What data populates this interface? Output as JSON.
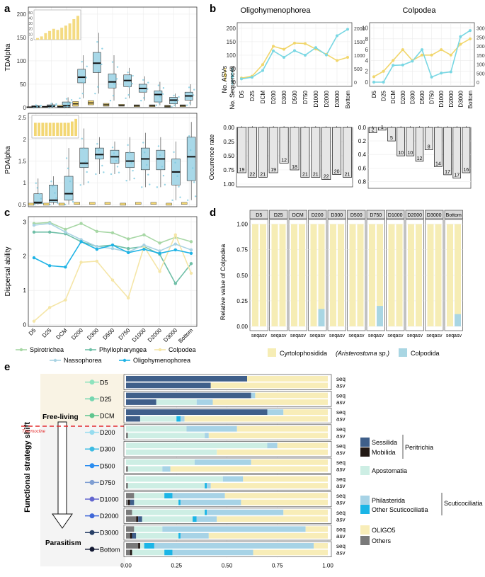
{
  "panel_letters": [
    "a",
    "b",
    "c",
    "d",
    "e"
  ],
  "colors": {
    "spirotrichea": "#a7d7a5",
    "phyllopharyngea": "#6fbfa7",
    "colpodea": "#f5e6a8",
    "nassophorea": "#a9d3e3",
    "oligohymenophorea": "#1fb3e5",
    "box_blue": "#a8d8e8",
    "box_yellow": "#f3d774",
    "asv_line": "#f1d66b",
    "seq_line": "#79d7e3",
    "occ_bar": "#e6e6e6",
    "sessilida": "#3f5f8a",
    "mobilida": "#221814",
    "apostomatia": "#cdeee4",
    "philasterida": "#a7d3e6",
    "other_scutico": "#1bb5e6",
    "oligo5": "#f8edb8",
    "others": "#7a7a7a",
    "colpodida": "#a9d6e3",
    "cyrtolophosidida": "#f6edb5",
    "facet_strip": "#d9d9d9",
    "free_living_bg": "#f9f3e4",
    "thermocline": "#e32b2b"
  },
  "chart_data": [
    {
      "id": "a_top",
      "type": "box",
      "ylabel": "TDAlpha",
      "yticks": [
        0,
        50,
        100,
        150,
        200
      ],
      "ylim": [
        0,
        215
      ],
      "categories": [
        "D5",
        "D25",
        "DCM",
        "D200",
        "D300",
        "D500",
        "D750",
        "D1000",
        "D2000",
        "D3000",
        "Bottom"
      ],
      "boxes": [
        {
          "cat": "D5",
          "q1": 1,
          "med": 2,
          "q3": 4,
          "lo": 0,
          "hi": 6,
          "color": "blue"
        },
        {
          "cat": "D25",
          "q1": 2,
          "med": 3,
          "q3": 6,
          "lo": 0,
          "hi": 10,
          "color": "blue"
        },
        {
          "cat": "DCM",
          "q1": 1,
          "med": 4,
          "q3": 12,
          "lo": 0,
          "hi": 22,
          "color": "blue"
        },
        {
          "cat": "D200",
          "q1": 53,
          "med": 65,
          "q3": 82,
          "lo": 20,
          "hi": 112,
          "color": "blue"
        },
        {
          "cat": "D300",
          "q1": 75,
          "med": 95,
          "q3": 118,
          "lo": 30,
          "hi": 160,
          "color": "blue"
        },
        {
          "cat": "D500",
          "q1": 42,
          "med": 55,
          "q3": 72,
          "lo": 15,
          "hi": 112,
          "color": "blue"
        },
        {
          "cat": "D750",
          "q1": 45,
          "med": 58,
          "q3": 70,
          "lo": 20,
          "hi": 85,
          "color": "blue"
        },
        {
          "cat": "D1000",
          "q1": 33,
          "med": 41,
          "q3": 50,
          "lo": 15,
          "hi": 67,
          "color": "blue"
        },
        {
          "cat": "D2000",
          "q1": 12,
          "med": 28,
          "q3": 36,
          "lo": 5,
          "hi": 55,
          "color": "blue"
        },
        {
          "cat": "D3000",
          "q1": 8,
          "med": 16,
          "q3": 22,
          "lo": 2,
          "hi": 30,
          "color": "blue"
        },
        {
          "cat": "Bottom",
          "q1": 16,
          "med": 25,
          "q3": 33,
          "lo": 5,
          "hi": 50,
          "color": "blue"
        }
      ],
      "yellow_boxes": [
        {
          "q1": 0,
          "med": 1,
          "q3": 2
        },
        {
          "q1": 1,
          "med": 2,
          "q3": 3
        },
        {
          "q1": 1,
          "med": 2,
          "q3": 5
        },
        {
          "q1": 3,
          "med": 8,
          "q3": 13
        },
        {
          "q1": 6,
          "med": 10,
          "q3": 15
        },
        {
          "q1": 3,
          "med": 6,
          "q3": 9
        },
        {
          "q1": 3,
          "med": 5,
          "q3": 7
        },
        {
          "q1": 2,
          "med": 4,
          "q3": 6
        },
        {
          "q1": 2,
          "med": 4,
          "q3": 6
        },
        {
          "q1": 1,
          "med": 3,
          "q3": 5
        },
        {
          "q1": 2,
          "med": 4,
          "q3": 6
        }
      ],
      "inset": {
        "yticks": [
          0,
          10,
          20,
          30,
          40,
          50
        ],
        "ylim": [
          0,
          55
        ],
        "medians": [
          3,
          6,
          12,
          16,
          20,
          18,
          22,
          26,
          30,
          38,
          44
        ]
      }
    },
    {
      "id": "a_bottom",
      "type": "box",
      "ylabel": "PDAlpha",
      "yticks": [
        0.5,
        1.0,
        1.5,
        2.0,
        2.5
      ],
      "ylim": [
        0.45,
        2.6
      ],
      "categories": [
        "D5",
        "D25",
        "DCM",
        "D200",
        "D300",
        "D500",
        "D750",
        "D1000",
        "D2000",
        "D3000",
        "Bottom"
      ],
      "boxes": [
        {
          "cat": "D5",
          "q1": 0.52,
          "med": 0.55,
          "q3": 0.75,
          "lo": 0.5,
          "hi": 1.1
        },
        {
          "cat": "D25",
          "q1": 0.55,
          "med": 0.6,
          "q3": 0.95,
          "lo": 0.5,
          "hi": 1.15
        },
        {
          "cat": "DCM",
          "q1": 0.6,
          "med": 0.75,
          "q3": 1.15,
          "lo": 0.5,
          "hi": 1.8
        },
        {
          "cat": "D200",
          "q1": 1.35,
          "med": 1.45,
          "q3": 1.8,
          "lo": 0.95,
          "hi": 2.25
        },
        {
          "cat": "D300",
          "q1": 1.55,
          "med": 1.65,
          "q3": 1.8,
          "lo": 1.2,
          "hi": 2.05
        },
        {
          "cat": "D500",
          "q1": 1.45,
          "med": 1.6,
          "q3": 1.75,
          "lo": 1.2,
          "hi": 1.95
        },
        {
          "cat": "D750",
          "q1": 1.35,
          "med": 1.5,
          "q3": 1.7,
          "lo": 1.05,
          "hi": 2.05
        },
        {
          "cat": "D1000",
          "q1": 1.3,
          "med": 1.55,
          "q3": 1.8,
          "lo": 0.9,
          "hi": 2.15
        },
        {
          "cat": "D2000",
          "q1": 1.3,
          "med": 1.55,
          "q3": 1.75,
          "lo": 0.9,
          "hi": 2.05
        },
        {
          "cat": "D3000",
          "q1": 0.95,
          "med": 1.25,
          "q3": 1.55,
          "lo": 0.6,
          "hi": 1.95
        },
        {
          "cat": "Bottom",
          "q1": 1.05,
          "med": 1.6,
          "q3": 2.05,
          "lo": 0.6,
          "hi": 2.4
        }
      ],
      "yellow_med": [
        0.5,
        0.5,
        0.5,
        0.52,
        0.52,
        0.52,
        0.5,
        0.52,
        0.52,
        0.5,
        0.52
      ],
      "inset": {
        "values": [
          1,
          1,
          1,
          1,
          1,
          1,
          1,
          1,
          1,
          1,
          1.1,
          1.3
        ]
      }
    },
    {
      "id": "b_oligo_line",
      "type": "line",
      "title": "Oligohymenophorea",
      "legend": [
        "No. ASVs",
        "No. Sequences"
      ],
      "yticks_left": [
        0,
        50,
        100,
        150,
        200
      ],
      "ylim_left": [
        0,
        205
      ],
      "yticks_right": [
        0,
        500,
        1000,
        1500,
        2000
      ],
      "ylim_right": [
        0,
        2050
      ],
      "categories": [
        "D5",
        "D25",
        "DCM",
        "D200",
        "D300",
        "D500",
        "D750",
        "D1000",
        "D2000",
        "D3000",
        "Bottom"
      ],
      "asv": [
        15,
        22,
        65,
        133,
        122,
        145,
        143,
        123,
        103,
        80,
        92
      ],
      "seq": [
        120,
        180,
        430,
        1160,
        920,
        1170,
        1000,
        1280,
        1010,
        1720,
        1960
      ]
    },
    {
      "id": "b_colp_line",
      "type": "line",
      "title": "Colpodea",
      "yticks_left": [
        0,
        2,
        4,
        6,
        8,
        10
      ],
      "ylim_left": [
        0,
        10.2
      ],
      "yticks_right": [
        0,
        500,
        1000,
        1500,
        2000,
        2500,
        3000
      ],
      "ylim_right": [
        0,
        3060
      ],
      "categories": [
        "D5",
        "D25",
        "DCM",
        "D200",
        "D300",
        "D500",
        "D750",
        "D1000",
        "D2000",
        "D3000",
        "Bottom"
      ],
      "asv": [
        1,
        2,
        4,
        6,
        4,
        5,
        5,
        6,
        5,
        7,
        8
      ],
      "seq": [
        0,
        0,
        930,
        950,
        1160,
        1800,
        280,
        500,
        570,
        2520,
        2860
      ]
    },
    {
      "id": "b_oligo_occ",
      "type": "bar",
      "ylabel": "Occurrence rate",
      "yticks": [
        "0.00",
        "0.25",
        "0.50",
        "0.75",
        "1.00"
      ],
      "ylim": [
        0,
        1.05
      ],
      "values": [
        0.8,
        0.88,
        0.88,
        0.8,
        0.63,
        0.75,
        0.88,
        0.88,
        0.92,
        0.83,
        0.88
      ],
      "labels": [
        "19",
        "22",
        "21",
        "19",
        "12",
        "18",
        "21",
        "21",
        "22",
        "20",
        "21"
      ]
    },
    {
      "id": "b_colp_occ",
      "type": "bar",
      "yticks": [
        "0.0",
        "0.2",
        "0.4",
        "0.6",
        "0.8"
      ],
      "ylim": [
        0,
        0.9
      ],
      "values": [
        0.08,
        0.04,
        0.2,
        0.42,
        0.42,
        0.5,
        0.33,
        0.58,
        0.7,
        0.75,
        0.67
      ],
      "labels": [
        "2",
        "1",
        "5",
        "10",
        "10",
        "12",
        "8",
        "14",
        "17",
        "17",
        "16"
      ]
    },
    {
      "id": "c",
      "type": "line",
      "ylabel": "Dispersal ability",
      "yticks": [
        0,
        1,
        2,
        3
      ],
      "ylim": [
        -0.05,
        3.15
      ],
      "categories": [
        "D5",
        "D25",
        "DCM",
        "D200",
        "D300",
        "D500",
        "D750",
        "D1000",
        "D2000",
        "D3000",
        "Bottom"
      ],
      "series": [
        {
          "name": "Spirotrichea",
          "key": "spirotrichea",
          "values": [
            2.95,
            2.98,
            2.78,
            2.95,
            2.72,
            2.68,
            2.5,
            2.62,
            2.38,
            2.55,
            2.42
          ]
        },
        {
          "name": "Phyllopharyngea",
          "key": "phyllopharyngea",
          "values": [
            2.7,
            2.7,
            2.65,
            2.42,
            2.28,
            2.32,
            2.22,
            2.28,
            2.05,
            1.2,
            1.78
          ]
        },
        {
          "name": "Colpodea",
          "key": "colpodea",
          "values": [
            0.1,
            0.5,
            0.72,
            1.82,
            1.85,
            1.3,
            0.78,
            2.28,
            1.55,
            2.62,
            1.5
          ]
        },
        {
          "name": "Nassophorea",
          "key": "nassophorea",
          "values": [
            2.9,
            2.95,
            2.7,
            2.48,
            2.28,
            2.22,
            2.12,
            2.32,
            2.15,
            2.35,
            2.18
          ]
        },
        {
          "name": "Oligohymenophorea",
          "key": "oligohymenophorea",
          "values": [
            1.95,
            1.72,
            1.68,
            2.42,
            2.2,
            2.32,
            2.1,
            2.2,
            2.08,
            2.18,
            2.08
          ]
        }
      ]
    },
    {
      "id": "d",
      "type": "bar",
      "ylabel": "Relative value of Colpodea",
      "yticks": [
        "0.00",
        "0.25",
        "0.50",
        "0.75",
        "1.00"
      ],
      "facets": [
        "D5",
        "D25",
        "DCM",
        "D200",
        "D300",
        "D500",
        "D750",
        "D1000",
        "D2000",
        "D3000",
        "Bottom"
      ],
      "xtick_labels": [
        "seq",
        "asv"
      ],
      "colpodida_fraction": [
        [
          0,
          0
        ],
        [
          0,
          0
        ],
        [
          0,
          0
        ],
        [
          0,
          0.17
        ],
        [
          0,
          0
        ],
        [
          0,
          0
        ],
        [
          0,
          0.2
        ],
        [
          0,
          0
        ],
        [
          0,
          0
        ],
        [
          0,
          0
        ],
        [
          0,
          0.12
        ]
      ],
      "legend": [
        "Cyrtolophosidida",
        "(Aristerostoma sp.)",
        "Colpodida"
      ]
    },
    {
      "id": "e",
      "type": "bar",
      "ylabel": "Functional strategy shift",
      "free_living": "Free-living",
      "parasitism": "Parasitism",
      "thermocline": "Thermocline",
      "xticks": [
        "0.00",
        "0.25",
        "0.50",
        "0.75",
        "1.00"
      ],
      "categories": [
        "D5",
        "D25",
        "DCM",
        "D200",
        "D300",
        "D500",
        "D750",
        "D1000",
        "D2000",
        "D3000",
        "Bottom"
      ],
      "dot_colors": [
        "#8de3bd",
        "#74d6b0",
        "#5fc58e",
        "#96dcef",
        "#3cbbe3",
        "#2a8df0",
        "#7f9ed2",
        "#6366cf",
        "#3f67d8",
        "#283f66",
        "#141a33"
      ],
      "row_labels": [
        "seq",
        "asv"
      ],
      "segment_order": [
        "others",
        "mobilida",
        "sessilida",
        "apostomatia",
        "other_scutico",
        "philasterida",
        "oligo5"
      ],
      "rows": [
        [
          {
            "sessilida": 0.6,
            "apostomatia": 0,
            "philasterida": 0,
            "other_scutico": 0,
            "oligo5": 0.4
          },
          {
            "sessilida": 0.42,
            "oligo5": 0.58
          }
        ],
        [
          {
            "sessilida": 0.62,
            "philasterida": 0.02,
            "oligo5": 0.36
          },
          {
            "sessilida": 0.15,
            "apostomatia": 0.2,
            "philasterida": 0.08,
            "oligo5": 0.57
          }
        ],
        [
          {
            "sessilida": 0.7,
            "philasterida": 0.08,
            "oligo5": 0.22
          },
          {
            "sessilida": 0.07,
            "apostomatia": 0.18,
            "other_scutico": 0.02,
            "philasterida": 0.02,
            "oligo5": 0.71
          }
        ],
        [
          {
            "apostomatia": 0.3,
            "philasterida": 0.25,
            "oligo5": 0.45
          },
          {
            "others": 0.01,
            "apostomatia": 0.38,
            "philasterida": 0.02,
            "oligo5": 0.59
          }
        ],
        [
          {
            "apostomatia": 0.7,
            "philasterida": 0.05,
            "oligo5": 0.25
          },
          {
            "apostomatia": 0.45,
            "oligo5": 0.55
          }
        ],
        [
          {
            "apostomatia": 0.34,
            "philasterida": 0.28,
            "oligo5": 0.38
          },
          {
            "others": 0.01,
            "apostomatia": 0.17,
            "philasterida": 0.04,
            "oligo5": 0.78
          }
        ],
        [
          {
            "apostomatia": 0.48,
            "philasterida": 0.1,
            "oligo5": 0.42
          },
          {
            "others": 0.01,
            "apostomatia": 0.38,
            "other_scutico": 0.01,
            "philasterida": 0.02,
            "oligo5": 0.58
          }
        ],
        [
          {
            "others": 0.04,
            "apostomatia": 0.15,
            "other_scutico": 0.04,
            "philasterida": 0.26,
            "oligo5": 0.51
          },
          {
            "others": 0.01,
            "mobilida": 0.01,
            "sessilida": 0.02,
            "apostomatia": 0.22,
            "other_scutico": 0.01,
            "philasterida": 0.3,
            "oligo5": 0.43
          }
        ],
        [
          {
            "others": 0.03,
            "apostomatia": 0.36,
            "other_scutico": 0.01,
            "philasterida": 0.38,
            "oligo5": 0.22
          },
          {
            "others": 0.05,
            "mobilida": 0.01,
            "sessilida": 0.02,
            "apostomatia": 0.25,
            "other_scutico": 0.02,
            "philasterida": 0.1,
            "oligo5": 0.55
          }
        ],
        [
          {
            "others": 0.04,
            "apostomatia": 0.14,
            "philasterida": 0.71,
            "oligo5": 0.11
          },
          {
            "others": 0.02,
            "mobilida": 0.01,
            "sessilida": 0.02,
            "apostomatia": 0.21,
            "other_scutico": 0.01,
            "philasterida": 0.14,
            "oligo5": 0.59
          }
        ],
        [
          {
            "others": 0.06,
            "mobilida": 0.01,
            "apostomatia": 0.02,
            "other_scutico": 0.05,
            "philasterida": 0.79,
            "oligo5": 0.07
          },
          {
            "others": 0.02,
            "mobilida": 0.01,
            "apostomatia": 0.16,
            "other_scutico": 0.04,
            "philasterida": 0.4,
            "oligo5": 0.37
          }
        ]
      ],
      "legend": {
        "sessilida": "Sessilida",
        "mobilida": "Mobilida",
        "peritrichia": "Peritrichia",
        "apostomatia": "Apostomatia",
        "philasterida": "Philasterida",
        "other_scutico": "Other Scuticociliatia",
        "scuticociliatia": "Scuticociliatia",
        "oligo5": "OLIGO5",
        "others": "Others"
      }
    }
  ]
}
